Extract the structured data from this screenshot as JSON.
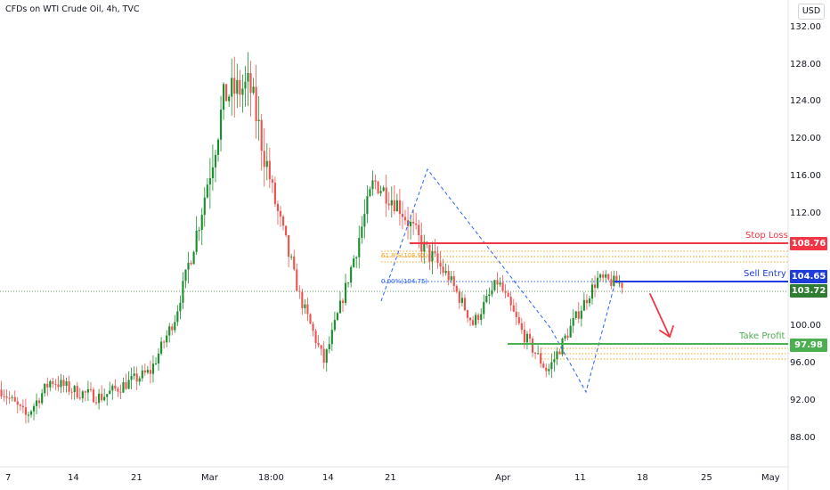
{
  "header": {
    "title": "CFDs on WTI Crude Oil, 4h, TVC",
    "currency": "USD"
  },
  "colors": {
    "up": "#26a69a",
    "upBody": "#1b8f2e",
    "down": "#ef5350",
    "stopLoss": "#f23645",
    "sellEntry": "#1e3bdc",
    "takeProfit": "#4caf50",
    "current": "#2e7d32",
    "fib": "#f5a623",
    "pattern": "#2962ff"
  },
  "levels": {
    "stop_loss": {
      "label": "Stop Loss",
      "price": "108.76"
    },
    "sell_entry": {
      "label": "Sell Entry",
      "price": "104.65"
    },
    "current": {
      "price": "103.72"
    },
    "take_profit": {
      "label": "Take Profit",
      "price": "97.98"
    }
  },
  "fib_labels": {
    "upper": "61.8%(108.91)",
    "entry": "0.00%(104.75)"
  },
  "chart_data": {
    "type": "candlestick",
    "title": "CFDs on WTI Crude Oil, 4h, TVC",
    "y_ticks": [
      "132.00",
      "128.00",
      "124.00",
      "120.00",
      "116.00",
      "112.00",
      "100.00",
      "96.00",
      "92.00",
      "88.00"
    ],
    "x_ticks": [
      "7",
      "14",
      "21",
      "Mar",
      "18:00",
      "14",
      "21",
      "Apr",
      "11",
      "18",
      "25",
      "May"
    ],
    "ylim": [
      84.5,
      133.5
    ],
    "price_path": [
      {
        "x": "Feb 7",
        "y": 92.6
      },
      {
        "x": "Feb 10",
        "y": 89.8
      },
      {
        "x": "Feb 13",
        "y": 93.6
      },
      {
        "x": "Feb 16",
        "y": 92.4
      },
      {
        "x": "Feb 20",
        "y": 91.8
      },
      {
        "x": "Feb 24",
        "y": 93.2
      },
      {
        "x": "Feb 27",
        "y": 94.5
      },
      {
        "x": "Mar 1",
        "y": 100.2
      },
      {
        "x": "Mar 3",
        "y": 110.5
      },
      {
        "x": "Mar 6",
        "y": 123.5
      },
      {
        "x": "Mar 8",
        "y": 124.5
      },
      {
        "x": "Mar 10",
        "y": 112.5
      },
      {
        "x": "Mar 14",
        "y": 102.5
      },
      {
        "x": "Mar 16",
        "y": 95.5
      },
      {
        "x": "Mar 18",
        "y": 104.5
      },
      {
        "x": "Mar 23",
        "y": 114.5
      },
      {
        "x": "Mar 25",
        "y": 112.0
      },
      {
        "x": "Mar 28",
        "y": 107.5
      },
      {
        "x": "Apr 1",
        "y": 104.5
      },
      {
        "x": "Apr 4",
        "y": 99.5
      },
      {
        "x": "Apr 6",
        "y": 104.0
      },
      {
        "x": "Apr 8",
        "y": 98.5
      },
      {
        "x": "Apr 11",
        "y": 94.5
      },
      {
        "x": "Apr 13",
        "y": 99.5
      },
      {
        "x": "Apr 15",
        "y": 104.2
      },
      {
        "x": "Apr 17",
        "y": 103.7
      }
    ]
  }
}
